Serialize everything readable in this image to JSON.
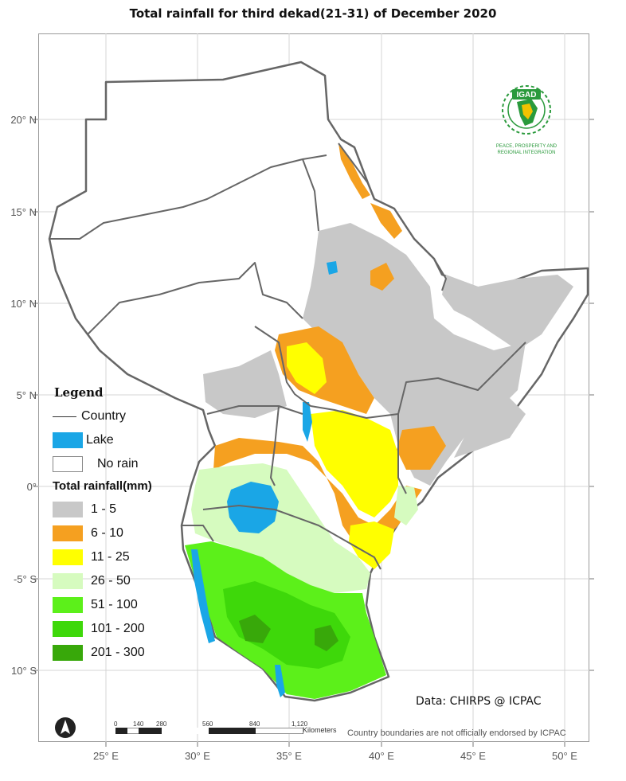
{
  "title": "Total rainfall for  third  dekad(21-31)  of December 2020",
  "latitude_labels": [
    "20° N",
    "15° N",
    "10° N",
    "5° N",
    "0°",
    "-5° S",
    "10° S"
  ],
  "longitude_labels": [
    "25° E",
    "30° E",
    "35° E",
    "40° E",
    "45° E",
    "50° E"
  ],
  "legend": {
    "title": "Legend",
    "country_label": "Country",
    "lake_label": "Lake",
    "lake_color": "#1aa6e6",
    "no_rain_label": "No rain",
    "no_rain_color": "#ffffff",
    "rainfall_title": "Total rainfall(mm)",
    "classes": [
      {
        "label": "1 - 5",
        "color": "#c8c8c8"
      },
      {
        "label": "6 - 10",
        "color": "#f5a020"
      },
      {
        "label": "11 - 25",
        "color": "#ffff00"
      },
      {
        "label": "26 - 50",
        "color": "#d6fbbf"
      },
      {
        "label": "51 - 100",
        "color": "#5cf01a"
      },
      {
        "label": "101 - 200",
        "color": "#3ed80a"
      },
      {
        "label": "201 - 300",
        "color": "#38a80a"
      }
    ]
  },
  "data_credit": "Data: CHIRPS @ ICPAC",
  "disclaimer": "Country boundaries are not officially endorsed by ICPAC",
  "scale_bar": {
    "ticks": [
      "0",
      "140",
      "280",
      "560",
      "840",
      "1,120"
    ],
    "unit": "Kilometers"
  },
  "logo": {
    "name": "IGAD",
    "motto_line1": "PEACE, PROSPERITY AND",
    "motto_line2": "REGIONAL INTEGRATION"
  }
}
